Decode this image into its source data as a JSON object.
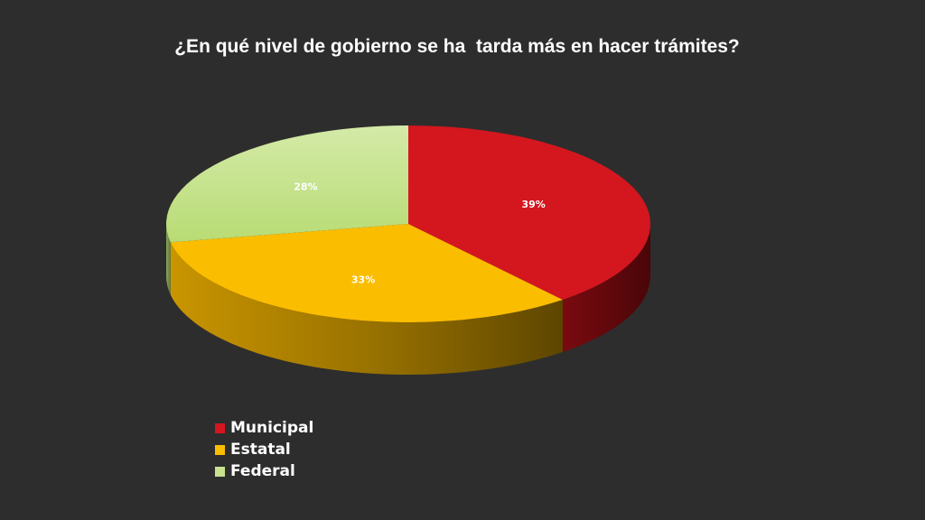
{
  "chart_data": {
    "type": "pie",
    "title": "¿En qué nivel de gobierno se ha  tarda más en hacer trámites?",
    "categories": [
      "Municipal",
      "Estatal",
      "Federal"
    ],
    "values": [
      39,
      33,
      28
    ],
    "data_labels": [
      "39%",
      "33%",
      "28%"
    ],
    "colors": [
      "#d4161f",
      "#fbbd00",
      "#c6e28e"
    ],
    "legend_position": "bottom",
    "style": "3d"
  }
}
